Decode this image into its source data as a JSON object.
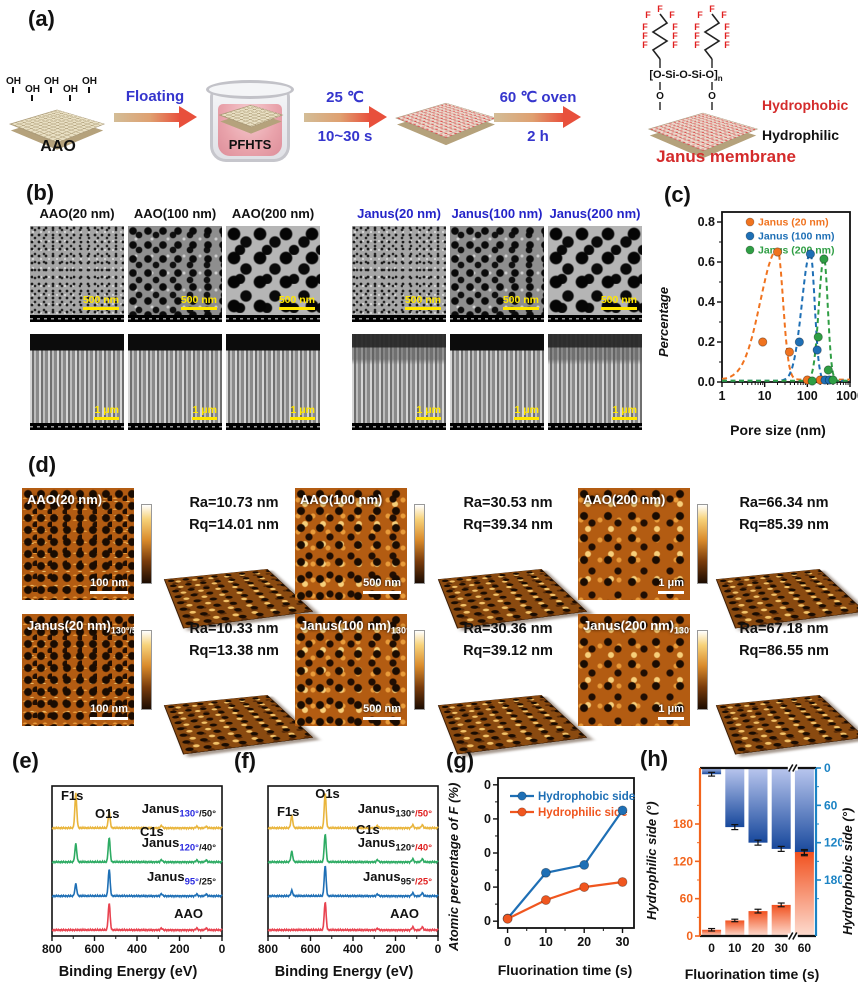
{
  "colors": {
    "janus_blue": "#2424c8",
    "step_blue": "#3535cd",
    "accent_red": "#d42b2b",
    "scale_yellow": "#ffe600",
    "xps_yellow": "#e9b53c",
    "xps_green": "#2dab63",
    "xps_blue": "#1e6fb5",
    "xps_red": "#e84350",
    "orange": "#f2641c",
    "blue": "#1b83c4"
  },
  "a": {
    "label": "(a)",
    "aao": "AAO",
    "oh": "OH",
    "floating": "Floating",
    "pfhts": "PFHTS",
    "temp1": "25 ℃",
    "time1": "10~30 s",
    "temp2": "60 ℃ oven",
    "time2": "2 h",
    "hydrophobic": "Hydrophobic",
    "hydrophilic": "Hydrophilic",
    "janus": "Janus membrane",
    "struct": {
      "f": "F",
      "o": "O",
      "backbone": "[O-Si-O-Si-O]",
      "n": "n"
    }
  },
  "b": {
    "label": "(b)",
    "cols": [
      {
        "name": "AAO(20 nm)"
      },
      {
        "name": "AAO(100 nm)"
      },
      {
        "name": "AAO(200 nm)"
      },
      {
        "name": "Janus(20 nm)"
      },
      {
        "name": "Janus(100 nm)"
      },
      {
        "name": "Janus(200 nm)"
      }
    ],
    "scale_top": "500 nm",
    "scale_bottom": "1 μm"
  },
  "c": {
    "label": "(c)"
  },
  "d": {
    "label": "(d)",
    "cells": [
      {
        "name": "AAO(20 nm)",
        "sub": "",
        "scale": "100 nm",
        "ra": "Ra=10.73 nm",
        "rq": "Rq=14.01 nm"
      },
      {
        "name": "Janus(20 nm)",
        "sub": "130°/50°",
        "scale": "100 nm",
        "ra": "Ra=10.33 nm",
        "rq": "Rq=13.38 nm"
      },
      {
        "name": "AAO(100 nm)",
        "sub": "",
        "scale": "500 nm",
        "ra": "Ra=30.53 nm",
        "rq": "Rq=39.34 nm"
      },
      {
        "name": "Janus(100 nm)",
        "sub": "130°/50°",
        "scale": "500 nm",
        "ra": "Ra=30.36 nm",
        "rq": "Rq=39.12 nm"
      },
      {
        "name": "AAO(200 nm)",
        "sub": "",
        "scale": "1 μm",
        "ra": "Ra=66.34 nm",
        "rq": "Rq=85.39 nm"
      },
      {
        "name": "Janus(200 nm)",
        "sub": "130°/50°",
        "scale": "1 μm",
        "ra": "Ra=67.18 nm",
        "rq": "Rq=86.55 nm"
      }
    ]
  },
  "e": {
    "label": "(e)"
  },
  "f": {
    "label": "(f)"
  },
  "g": {
    "label": "(g)"
  },
  "h": {
    "label": "(h)"
  },
  "chart_data": [
    {
      "id": "c",
      "type": "line",
      "xscale": "log",
      "xlim": [
        1,
        1000
      ],
      "ylim": [
        0,
        0.85
      ],
      "xlabel": "Pore size (nm)",
      "ylabel": "Percentage",
      "xticks": [
        "1",
        "10",
        "100",
        "1000"
      ],
      "yticks": [
        "0.0",
        "0.2",
        "0.4",
        "0.6",
        "0.8"
      ],
      "legend_position": "top-inside",
      "series": [
        {
          "name": "Janus (20 nm)",
          "color": "#f0731f",
          "peak": 20,
          "amp": 0.65,
          "sigL": 0.4,
          "sigR": 0.13,
          "base": 0.012,
          "points": [
            [
              9,
              0.2
            ],
            [
              20,
              0.65
            ],
            [
              38,
              0.15
            ],
            [
              100,
              0.01
            ],
            [
              200,
              0.01
            ]
          ]
        },
        {
          "name": "Janus (100 nm)",
          "color": "#1e6fb5",
          "peak": 118,
          "amp": 0.64,
          "sigL": 0.2,
          "sigR": 0.1,
          "base": 0.006,
          "points": [
            [
              65,
              0.2
            ],
            [
              118,
              0.64
            ],
            [
              170,
              0.16
            ],
            [
              260,
              0.01
            ],
            [
              330,
              0.01
            ]
          ]
        },
        {
          "name": "Janus (200 nm)",
          "color": "#2f9e44",
          "peak": 245,
          "amp": 0.615,
          "sigL": 0.12,
          "sigR": 0.09,
          "base": 0.006,
          "points": [
            [
              180,
              0.225
            ],
            [
              245,
              0.615
            ],
            [
              310,
              0.06
            ],
            [
              400,
              0.01
            ],
            [
              130,
              0.005
            ]
          ]
        }
      ]
    },
    {
      "id": "e",
      "type": "xps",
      "xlabel": "Binding Energy (eV)",
      "xlim": [
        800,
        0
      ],
      "xticks": [
        "800",
        "600",
        "400",
        "200",
        "0"
      ],
      "peak_labels": [
        {
          "text": "F1s",
          "x": 705,
          "y": 22
        },
        {
          "text": "O1s",
          "x": 540,
          "y": 40
        },
        {
          "text": "C1s",
          "x": 330,
          "y": 58
        }
      ],
      "series": [
        {
          "name": "Janus",
          "sub1": "130°",
          "sub2": "/50°",
          "sub1_color": "#2a2ae0",
          "sub2_color": "#161616",
          "color": "#e9b53c",
          "peaks": [
            {
              "x": 688,
              "h": 1.15
            },
            {
              "x": 531,
              "h": 0.55
            },
            {
              "x": 285,
              "h": 0.08
            },
            {
              "x": 119,
              "h": 0.05
            },
            {
              "x": 74,
              "h": 0.05
            }
          ]
        },
        {
          "name": "Janus",
          "sub1": "120°",
          "sub2": "/40°",
          "sub1_color": "#2a2ae0",
          "sub2_color": "#161616",
          "color": "#2dab63",
          "peaks": [
            {
              "x": 688,
              "h": 0.6
            },
            {
              "x": 531,
              "h": 0.8
            },
            {
              "x": 285,
              "h": 0.07
            },
            {
              "x": 119,
              "h": 0.06
            },
            {
              "x": 74,
              "h": 0.06
            }
          ]
        },
        {
          "name": "Janus",
          "sub1": "95°",
          "sub2": "/25°",
          "sub1_color": "#2a2ae0",
          "sub2_color": "#161616",
          "color": "#1e6fb5",
          "peaks": [
            {
              "x": 688,
              "h": 0.4
            },
            {
              "x": 531,
              "h": 0.88
            },
            {
              "x": 285,
              "h": 0.07
            },
            {
              "x": 119,
              "h": 0.06
            },
            {
              "x": 74,
              "h": 0.06
            }
          ]
        },
        {
          "name": "AAO",
          "color": "#e84350",
          "peaks": [
            {
              "x": 531,
              "h": 0.88
            },
            {
              "x": 285,
              "h": 0.06
            },
            {
              "x": 119,
              "h": 0.06
            },
            {
              "x": 74,
              "h": 0.06
            }
          ]
        }
      ]
    },
    {
      "id": "f",
      "type": "xps",
      "xlabel": "Binding Energy (eV)",
      "xlim": [
        800,
        0
      ],
      "xticks": [
        "800",
        "600",
        "400",
        "200",
        "0"
      ],
      "peak_labels": [
        {
          "text": "O1s",
          "x": 520,
          "y": 20
        },
        {
          "text": "F1s",
          "x": 705,
          "y": 38
        },
        {
          "text": "C1s",
          "x": 330,
          "y": 56
        }
      ],
      "series": [
        {
          "name": "Janus",
          "sub1": "130°",
          "sub2": "/50°",
          "sub1_color": "#161616",
          "sub2_color": "#e02020",
          "color": "#e9b53c",
          "peaks": [
            {
              "x": 688,
              "h": 0.42
            },
            {
              "x": 531,
              "h": 1.15
            },
            {
              "x": 285,
              "h": 0.08
            },
            {
              "x": 119,
              "h": 0.1
            },
            {
              "x": 74,
              "h": 0.1
            }
          ]
        },
        {
          "name": "Janus",
          "sub1": "120°",
          "sub2": "/40°",
          "sub1_color": "#161616",
          "sub2_color": "#e02020",
          "color": "#2dab63",
          "peaks": [
            {
              "x": 688,
              "h": 0.35
            },
            {
              "x": 531,
              "h": 0.92
            },
            {
              "x": 285,
              "h": 0.07
            },
            {
              "x": 119,
              "h": 0.1
            },
            {
              "x": 74,
              "h": 0.1
            }
          ]
        },
        {
          "name": "Janus",
          "sub1": "95°",
          "sub2": "/25°",
          "sub1_color": "#161616",
          "sub2_color": "#e02020",
          "color": "#1e6fb5",
          "peaks": [
            {
              "x": 688,
              "h": 0.18
            },
            {
              "x": 531,
              "h": 1.0
            },
            {
              "x": 285,
              "h": 0.06
            },
            {
              "x": 119,
              "h": 0.1
            },
            {
              "x": 74,
              "h": 0.1
            }
          ]
        },
        {
          "name": "AAO",
          "color": "#e84350",
          "peaks": [
            {
              "x": 531,
              "h": 0.92
            },
            {
              "x": 285,
              "h": 0.05
            },
            {
              "x": 119,
              "h": 0.1
            },
            {
              "x": 74,
              "h": 0.1
            }
          ]
        }
      ]
    },
    {
      "id": "g",
      "type": "line",
      "xlim": [
        -2.5,
        33
      ],
      "ylim": [
        -2,
        42
      ],
      "xlabel": "Fluorination time (s)",
      "ylabel": "Atomic percentage of F (%)",
      "xticks": [
        0,
        10,
        20,
        30
      ],
      "yticks": [
        0,
        10,
        20,
        30,
        40
      ],
      "legend_position": "top-left",
      "series": [
        {
          "name": "Hydrophobic side",
          "color": "#1e6fb5",
          "x": [
            0,
            10,
            20,
            30
          ],
          "values": [
            0.8,
            14.2,
            16.5,
            32.5
          ]
        },
        {
          "name": "Hydrophilic side",
          "color": "#f0561f",
          "x": [
            0,
            10,
            20,
            30
          ],
          "values": [
            0.7,
            6.2,
            10.0,
            11.5
          ]
        }
      ]
    },
    {
      "id": "h",
      "type": "bar-dual",
      "xlabel": "Fluorination time (s)",
      "categories": [
        "0",
        "10",
        "20",
        "30",
        "60"
      ],
      "break_after": 3,
      "left_axis": {
        "label": "Hydrophilic side (°)",
        "color": "#f2641c",
        "ticks": [
          0,
          60,
          120,
          180
        ],
        "max": 270
      },
      "right_axis": {
        "label": "Hydrophobic side (°)",
        "color": "#1b83c4",
        "ticks": [
          0,
          60,
          120,
          180
        ],
        "max": 270,
        "inverted": true
      },
      "series": [
        {
          "name": "Hydrophobic side",
          "side": "right",
          "color_top": "#b9c6ee",
          "color_bottom": "#17489c",
          "values": [
            10,
            95,
            120,
            130,
            137
          ],
          "errors": [
            3,
            4,
            4,
            4,
            4
          ]
        },
        {
          "name": "Hydrophilic side",
          "side": "left",
          "color_top": "#f1511f",
          "color_bottom": "#fddcd0",
          "values": [
            10,
            25,
            40,
            50,
            135
          ],
          "errors": [
            2,
            2,
            3,
            3,
            4
          ]
        }
      ]
    }
  ]
}
